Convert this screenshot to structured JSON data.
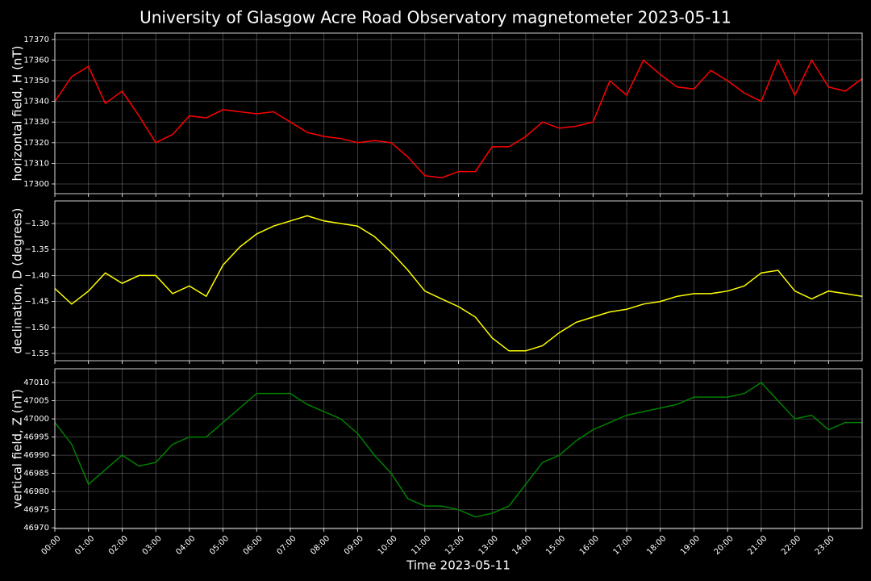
{
  "title": "University of Glasgow Acre Road Observatory magnetometer 2023-05-11",
  "chart_data": [
    {
      "type": "line",
      "ylabel": "horizontal field, H (nT)",
      "color": "#ff0000",
      "grid": true,
      "x": [
        0,
        0.5,
        1,
        1.5,
        2,
        2.5,
        3,
        3.5,
        4,
        4.5,
        5,
        5.5,
        6,
        6.5,
        7,
        7.5,
        8,
        8.5,
        9,
        9.5,
        10,
        10.5,
        11,
        11.5,
        12,
        12.5,
        13,
        13.5,
        14,
        14.5,
        15,
        15.5,
        16,
        16.5,
        17,
        17.5,
        18,
        18.5,
        19,
        19.5,
        20,
        20.5,
        21,
        21.5,
        22,
        22.5,
        23,
        23.5,
        24
      ],
      "values": [
        17340,
        17352,
        17357,
        17339,
        17345,
        17333,
        17320,
        17324,
        17333,
        17332,
        17336,
        17335,
        17334,
        17335,
        17330,
        17325,
        17323,
        17322,
        17320,
        17321,
        17320,
        17313,
        17304,
        17303,
        17306,
        17306,
        17318,
        17318,
        17323,
        17330,
        17327,
        17328,
        17330,
        17350,
        17343,
        17360,
        17353,
        17347,
        17346,
        17355,
        17350,
        17344,
        17340,
        17360,
        17343,
        17360,
        17347,
        17345,
        17351
      ],
      "xlim": [
        0,
        24
      ],
      "ylim": [
        17295.3,
        17373.1
      ],
      "yticks": [
        17300,
        17310,
        17320,
        17330,
        17340,
        17350,
        17360,
        17370
      ]
    },
    {
      "type": "line",
      "ylabel": "declination, D (degrees)",
      "color": "#ffff00",
      "grid": true,
      "x": [
        0,
        0.5,
        1,
        1.5,
        2,
        2.5,
        3,
        3.5,
        4,
        4.5,
        5,
        5.5,
        6,
        6.5,
        7,
        7.5,
        8,
        8.5,
        9,
        9.5,
        10,
        10.5,
        11,
        11.5,
        12,
        12.5,
        13,
        13.5,
        14,
        14.5,
        15,
        15.5,
        16,
        16.5,
        17,
        17.5,
        18,
        18.5,
        19,
        19.5,
        20,
        20.5,
        21,
        21.5,
        22,
        22.5,
        23,
        23.5,
        24
      ],
      "values": [
        -1.425,
        -1.455,
        -1.43,
        -1.395,
        -1.415,
        -1.4,
        -1.4,
        -1.435,
        -1.42,
        -1.44,
        -1.38,
        -1.345,
        -1.32,
        -1.305,
        -1.295,
        -1.285,
        -1.295,
        -1.3,
        -1.305,
        -1.325,
        -1.355,
        -1.39,
        -1.43,
        -1.445,
        -1.46,
        -1.48,
        -1.52,
        -1.545,
        -1.545,
        -1.535,
        -1.51,
        -1.49,
        -1.48,
        -1.47,
        -1.465,
        -1.455,
        -1.45,
        -1.44,
        -1.435,
        -1.435,
        -1.43,
        -1.42,
        -1.395,
        -1.39,
        -1.43,
        -1.445,
        -1.43,
        -1.435,
        -1.44
      ],
      "xlim": [
        0,
        24
      ],
      "ylim": [
        -1.564,
        -1.2565
      ],
      "yticks": [
        {
          "value": -1.55,
          "label": "−1.55"
        },
        {
          "value": -1.5,
          "label": "−1.50"
        },
        {
          "value": -1.45,
          "label": "−1.45"
        },
        {
          "value": -1.4,
          "label": "−1.40"
        },
        {
          "value": -1.35,
          "label": "−1.35"
        },
        {
          "value": -1.3,
          "label": "−1.30"
        }
      ]
    },
    {
      "type": "line",
      "ylabel": "vertical field, Z (nT)",
      "xlabel": "Time 2023-05-11",
      "color": "#008000",
      "grid": true,
      "x": [
        0,
        0.5,
        1,
        1.5,
        2,
        2.5,
        3,
        3.5,
        4,
        4.5,
        5,
        5.5,
        6,
        6.5,
        7,
        7.5,
        8,
        8.5,
        9,
        9.5,
        10,
        10.5,
        11,
        11.5,
        12,
        12.5,
        13,
        13.5,
        14,
        14.5,
        15,
        15.5,
        16,
        16.5,
        17,
        17.5,
        18,
        18.5,
        19,
        19.5,
        20,
        20.5,
        21,
        21.5,
        22,
        22.5,
        23,
        23.5,
        24
      ],
      "values": [
        46999,
        46993,
        46982,
        46986,
        46990,
        46987,
        46988,
        46993,
        46995,
        46995,
        46999,
        47003,
        47007,
        47007,
        47007,
        47004,
        47002,
        47000,
        46996,
        46990,
        46985,
        46978,
        46976,
        46976,
        46975,
        46973,
        46974,
        46976,
        46982,
        46988,
        46990,
        46994,
        46997,
        46999,
        47001,
        47002,
        47003,
        47004,
        47006,
        47006,
        47006,
        47007,
        47010,
        47005,
        47000,
        47001,
        46997,
        46999,
        46999
      ],
      "xlim": [
        0,
        24
      ],
      "ylim": [
        46969.8,
        47013.8
      ],
      "yticks": [
        46970,
        46975,
        46980,
        46985,
        46990,
        46995,
        47000,
        47005,
        47010
      ],
      "xticks": [
        {
          "value": 0,
          "label": "00:00"
        },
        {
          "value": 1,
          "label": "01:00"
        },
        {
          "value": 2,
          "label": "02:00"
        },
        {
          "value": 3,
          "label": "03:00"
        },
        {
          "value": 4,
          "label": "04:00"
        },
        {
          "value": 5,
          "label": "05:00"
        },
        {
          "value": 6,
          "label": "06:00"
        },
        {
          "value": 7,
          "label": "07:00"
        },
        {
          "value": 8,
          "label": "08:00"
        },
        {
          "value": 9,
          "label": "09:00"
        },
        {
          "value": 10,
          "label": "10:00"
        },
        {
          "value": 11,
          "label": "11:00"
        },
        {
          "value": 12,
          "label": "12:00"
        },
        {
          "value": 13,
          "label": "13:00"
        },
        {
          "value": 14,
          "label": "14:00"
        },
        {
          "value": 15,
          "label": "15:00"
        },
        {
          "value": 16,
          "label": "16:00"
        },
        {
          "value": 17,
          "label": "17:00"
        },
        {
          "value": 18,
          "label": "18:00"
        },
        {
          "value": 19,
          "label": "19:00"
        },
        {
          "value": 20,
          "label": "20:00"
        },
        {
          "value": 21,
          "label": "21:00"
        },
        {
          "value": 22,
          "label": "22:00"
        },
        {
          "value": 23,
          "label": "23:00"
        }
      ]
    }
  ]
}
